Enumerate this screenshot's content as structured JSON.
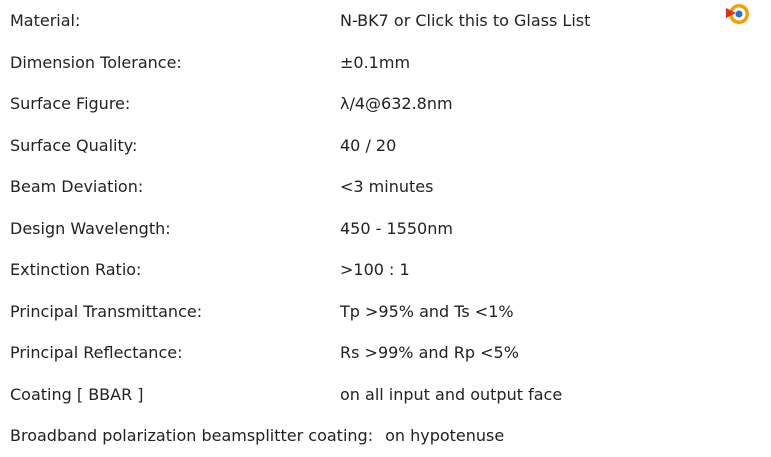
{
  "rows": [
    {
      "label": "Material:",
      "value": "N-BK7 or Click this to Glass List"
    },
    {
      "label": "Dimension Tolerance:",
      "value": "±0.1mm"
    },
    {
      "label": "Surface Figure:",
      "value": "λ/4@632.8nm"
    },
    {
      "label": "Surface Quality:",
      "value": "40 / 20"
    },
    {
      "label": "Beam Deviation:",
      "value": "<3 minutes"
    },
    {
      "label": "Design Wavelength:",
      "value": "450 - 1550nm"
    },
    {
      "label": "Extinction Ratio:",
      "value": ">100 : 1"
    },
    {
      "label": "Principal Transmittance:",
      "value": "Tp >95% and Ts <1%"
    },
    {
      "label": "Principal Reflectance:",
      "value": "Rs >99% and Rp <5%"
    },
    {
      "label": "Coating [ BBAR ]",
      "value": "on all input and output face"
    },
    {
      "label": "Broadband polarization beamsplitter coating:",
      "value": "on hypotenuse"
    }
  ]
}
